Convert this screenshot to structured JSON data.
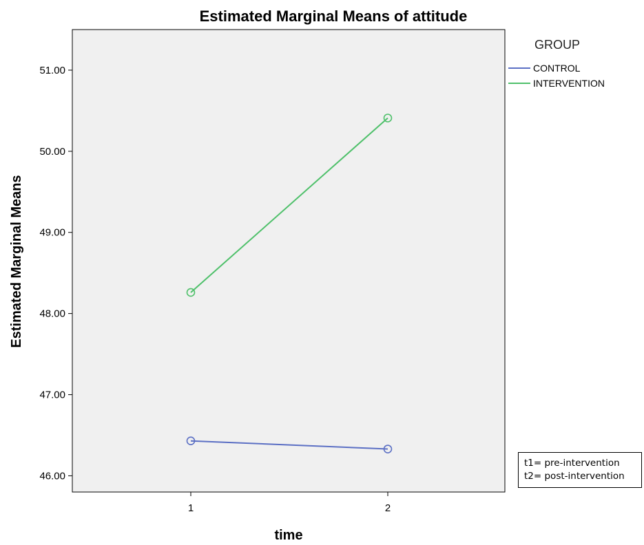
{
  "chart_data": {
    "type": "line",
    "title": "Estimated Marginal Means of attitude",
    "xlabel": "time",
    "ylabel": "Estimated Marginal Means",
    "categories": [
      "1",
      "2"
    ],
    "ylim": [
      45.8,
      51.5
    ],
    "yticks": [
      "46.00",
      "47.00",
      "48.00",
      "49.00",
      "50.00",
      "51.00"
    ],
    "ytick_values": [
      46,
      47,
      48,
      49,
      50,
      51
    ],
    "grid": false,
    "legend": {
      "title": "GROUP",
      "placement": "right"
    },
    "series": [
      {
        "name": "CONTROL",
        "values": [
          46.43,
          46.33
        ],
        "color": "#5b6fc4"
      },
      {
        "name": "INTERVENTION",
        "values": [
          48.26,
          50.41
        ],
        "color": "#4ec06a"
      }
    ],
    "annotation": {
      "lines": [
        "t1= pre-intervention",
        "t2= post-intervention"
      ]
    }
  },
  "colors": {
    "plot_background": "#f0f0f0",
    "axis": "#000000"
  }
}
